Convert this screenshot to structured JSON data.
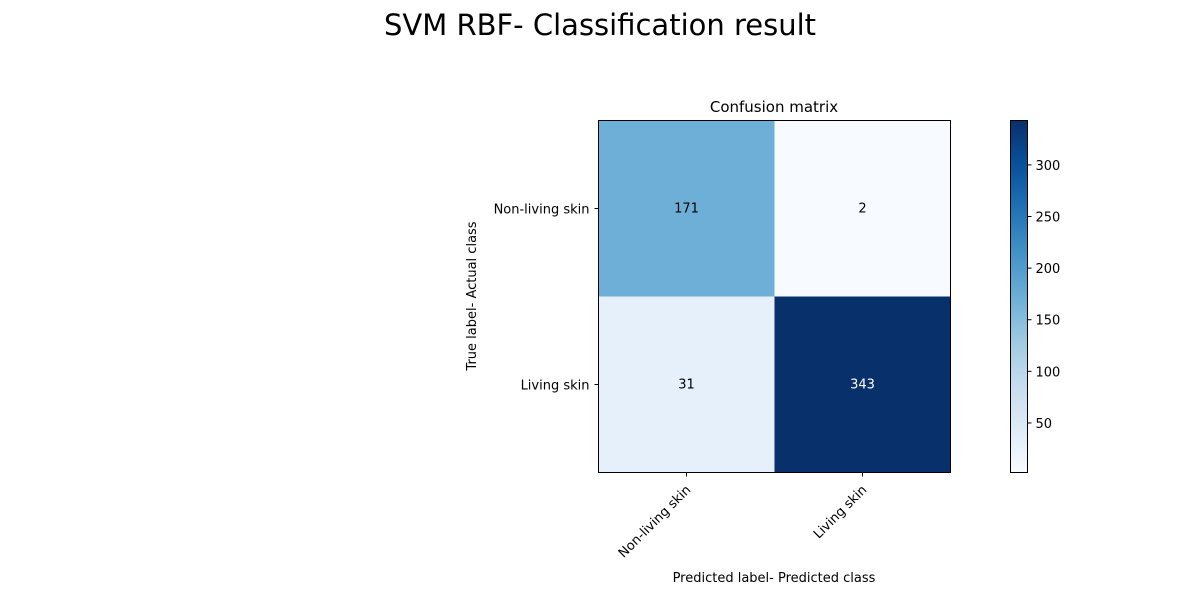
{
  "figure": {
    "suptitle": "SVM RBF- Classification result"
  },
  "chart_data": {
    "type": "heatmap",
    "title": "Confusion matrix",
    "xlabel": "Predicted label- Predicted class",
    "ylabel": "True label- Actual class",
    "x_categories": [
      "Non-living skin",
      "Living skin"
    ],
    "y_categories": [
      "Non-living skin",
      "Living skin"
    ],
    "values": [
      [
        171,
        2
      ],
      [
        31,
        343
      ]
    ],
    "colormap": "Blues",
    "colormap_stops": [
      "#f7fbff",
      "#deebf7",
      "#c6dbef",
      "#9ecae1",
      "#6baed6",
      "#4292c6",
      "#2171b5",
      "#08519c",
      "#08306b"
    ],
    "vmin": 2,
    "vmax": 343,
    "colorbar_ticks": [
      50,
      100,
      150,
      200,
      250,
      300
    ],
    "light_text_color": "#ffffff",
    "dark_text_color": "#000000"
  }
}
